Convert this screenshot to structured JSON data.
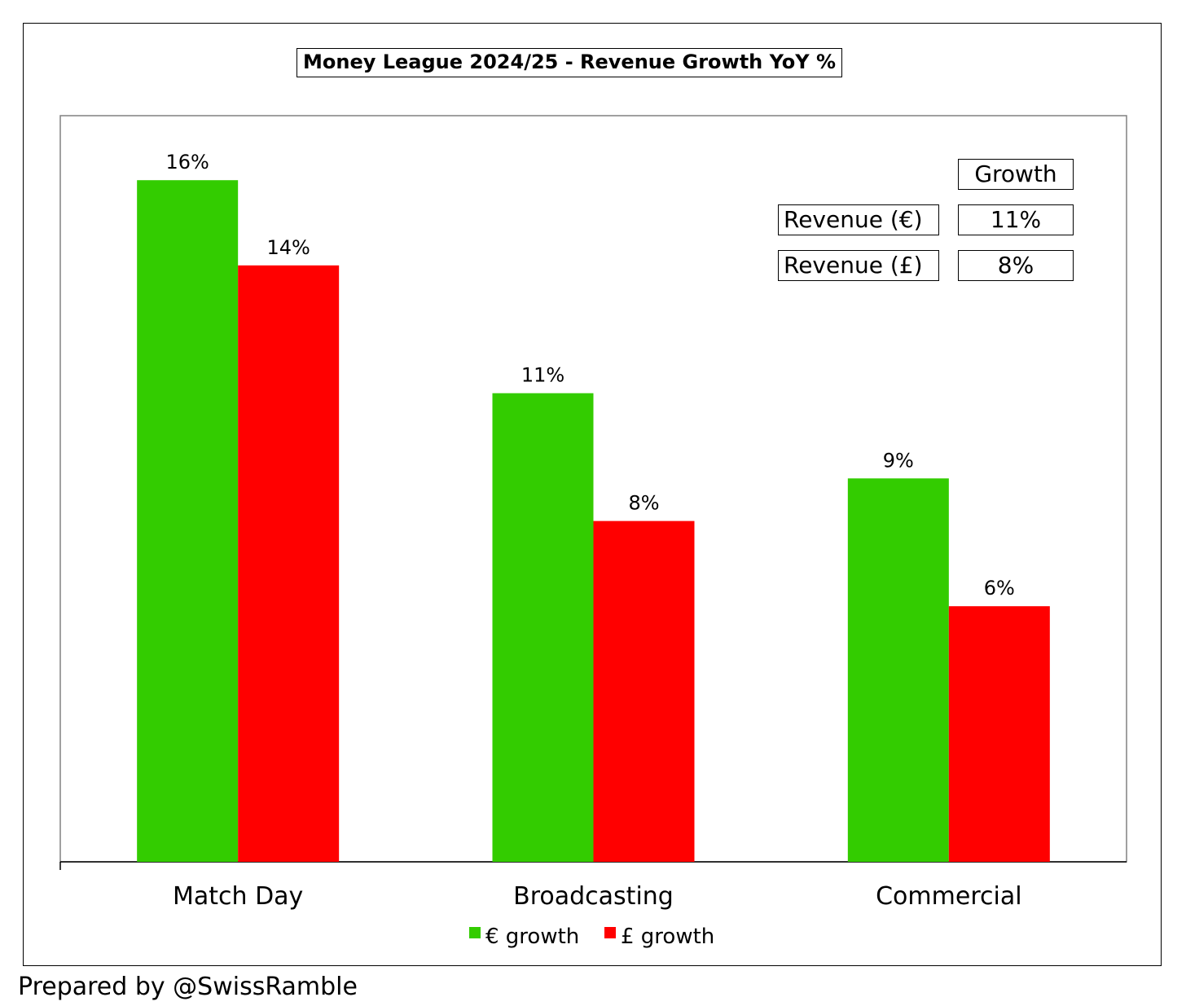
{
  "chart_data": {
    "type": "bar",
    "title": "Money League 2024/25 - Revenue Growth YoY %",
    "categories": [
      "Match Day",
      "Broadcasting",
      "Commercial"
    ],
    "series": [
      {
        "name": "€ growth",
        "color": "#33cc00",
        "values": [
          16,
          11,
          9
        ],
        "labels": [
          "16%",
          "11%",
          "9%"
        ]
      },
      {
        "name": "£ growth",
        "color": "#ff0000",
        "values": [
          14,
          8,
          6
        ],
        "labels": [
          "14%",
          "8%",
          "6%"
        ]
      }
    ],
    "ylim": [
      0,
      18
    ],
    "grid": false,
    "legend": "bottom-center",
    "xlabel": "",
    "ylabel": ""
  },
  "inset_table": {
    "header": "Growth",
    "rows": [
      {
        "label": "Revenue (€)",
        "value": "11%"
      },
      {
        "label": "Revenue (£)",
        "value": "8%"
      }
    ]
  },
  "footer": "Prepared by @SwissRamble"
}
